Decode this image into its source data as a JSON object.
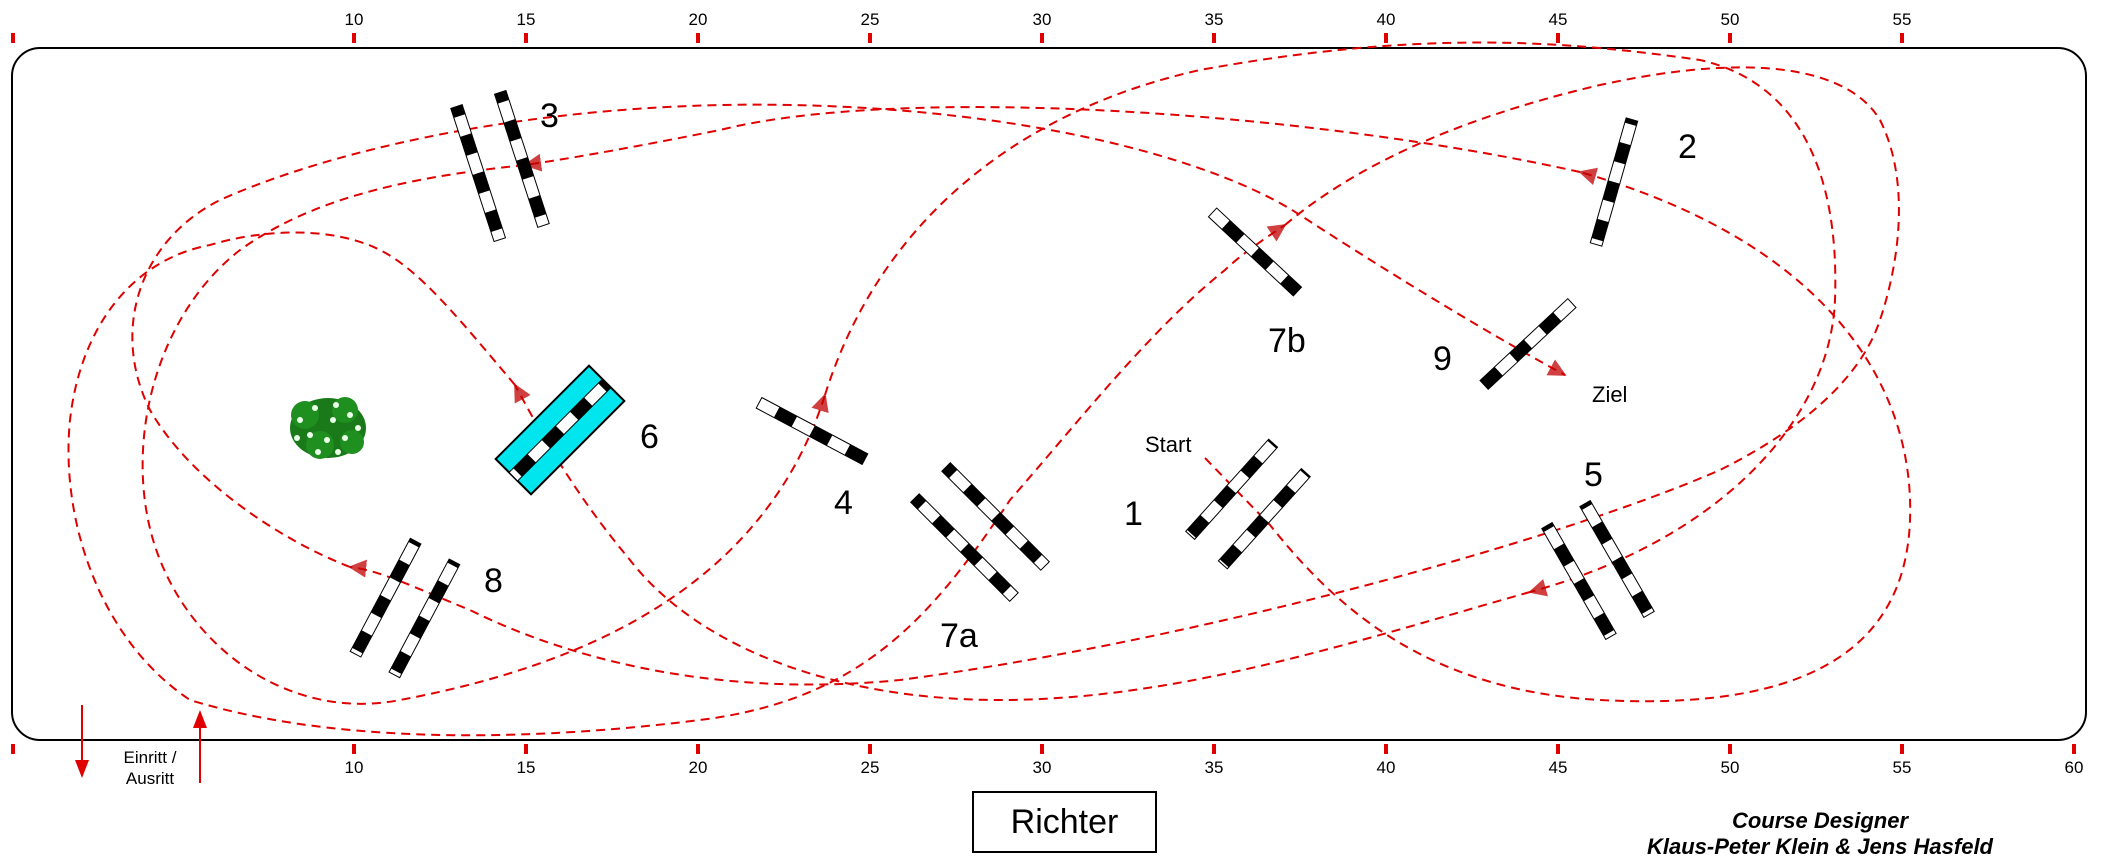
{
  "ruler": {
    "top_ticks": [
      "10",
      "15",
      "20",
      "25",
      "30",
      "35",
      "40",
      "45",
      "50",
      "55"
    ],
    "bottom_ticks": [
      "10",
      "15",
      "20",
      "25",
      "30",
      "35",
      "40",
      "45",
      "50",
      "55",
      "60"
    ]
  },
  "obstacles": {
    "o1": "1",
    "o2": "2",
    "o3": "3",
    "o4": "4",
    "o5": "5",
    "o6": "6",
    "o7a": "7a",
    "o7b": "7b",
    "o8": "8",
    "o9": "9"
  },
  "markers": {
    "start": "Start",
    "finish": "Ziel"
  },
  "entry": {
    "line1": "Einritt /",
    "line2": "Ausritt"
  },
  "judge": {
    "label": "Richter"
  },
  "designer": {
    "title": "Course Designer",
    "names": "Klaus-Peter Klein & Jens Hasfeld"
  },
  "colors": {
    "route": "#e00000",
    "water": "#00e5ee",
    "hedge": "#1a7a1a"
  }
}
